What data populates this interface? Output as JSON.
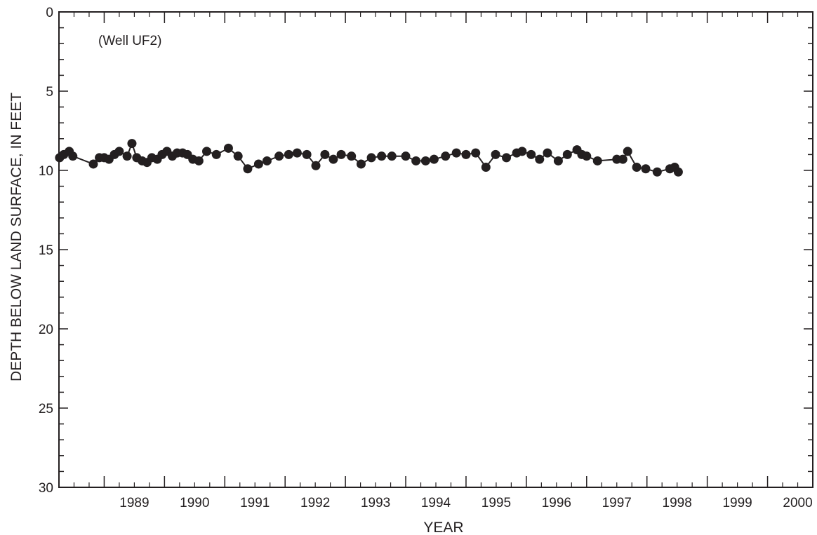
{
  "chart_data": {
    "type": "line",
    "annotation": "(Well UF2)",
    "xlabel": "YEAR",
    "ylabel": "DEPTH BELOW LAND SURFACE, IN FEET",
    "xlim": [
      1988.25,
      2000.75
    ],
    "ylim": [
      0,
      30
    ],
    "y_inverted": true,
    "x_tick_labels": [
      "1989",
      "1990",
      "1991",
      "1992",
      "1993",
      "1994",
      "1995",
      "1996",
      "1997",
      "1998",
      "1999",
      "2000"
    ],
    "y_tick_labels": [
      "0",
      "5",
      "10",
      "15",
      "20",
      "25",
      "30"
    ],
    "grid": false,
    "marker_color": "#231f20",
    "series": [
      {
        "x": [
          1988.26,
          1988.33,
          1988.42,
          1988.48,
          1988.82,
          1988.92,
          1989.0,
          1989.08,
          1989.17,
          1989.25,
          1989.38,
          1989.46,
          1989.54,
          1989.63,
          1989.71,
          1989.79,
          1989.88,
          1989.96,
          1990.04,
          1990.13,
          1990.21,
          1990.3,
          1990.38,
          1990.47,
          1990.57,
          1990.7,
          1990.86,
          1991.06,
          1991.22,
          1991.38,
          1991.56,
          1991.7,
          1991.9,
          1992.06,
          1992.2,
          1992.36,
          1992.51,
          1992.66,
          1992.8,
          1992.93,
          1993.1,
          1993.26,
          1993.43,
          1993.6,
          1993.77,
          1994.0,
          1994.17,
          1994.33,
          1994.47,
          1994.66,
          1994.84,
          1995.0,
          1995.16,
          1995.33,
          1995.49,
          1995.67,
          1995.84,
          1995.93,
          1996.08,
          1996.22,
          1996.35,
          1996.53,
          1996.68,
          1996.84,
          1996.92,
          1997.0,
          1997.18,
          1997.5,
          1997.6,
          1997.68,
          1997.83,
          1997.98,
          1998.17,
          1998.38,
          1998.46,
          1998.52
        ],
        "y": [
          9.2,
          9.0,
          8.8,
          9.1,
          9.6,
          9.2,
          9.2,
          9.3,
          9.0,
          8.8,
          9.1,
          8.3,
          9.2,
          9.4,
          9.5,
          9.2,
          9.3,
          9.0,
          8.8,
          9.1,
          8.9,
          8.9,
          9.0,
          9.3,
          9.4,
          8.8,
          9.0,
          8.6,
          9.1,
          9.9,
          9.6,
          9.4,
          9.1,
          9.0,
          8.9,
          9.0,
          9.7,
          9.0,
          9.3,
          9.0,
          9.1,
          9.6,
          9.2,
          9.1,
          9.1,
          9.1,
          9.4,
          9.4,
          9.3,
          9.1,
          8.9,
          9.0,
          8.9,
          9.8,
          9.0,
          9.2,
          8.9,
          8.8,
          9.0,
          9.3,
          8.9,
          9.4,
          9.0,
          8.7,
          9.0,
          9.1,
          9.4,
          9.3,
          9.3,
          8.8,
          9.8,
          9.9,
          10.1,
          9.9,
          9.8,
          10.1
        ]
      }
    ]
  }
}
